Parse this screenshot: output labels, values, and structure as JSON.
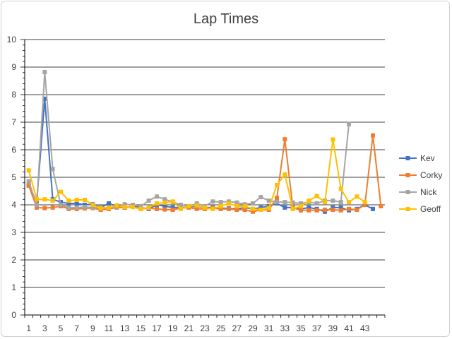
{
  "chart_data": {
    "type": "line",
    "title": "Lap Times",
    "xlabel": "",
    "ylabel": "",
    "ylim": [
      0,
      10
    ],
    "y_ticks": [
      "0",
      "1",
      "2",
      "3",
      "4",
      "5",
      "6",
      "7",
      "8",
      "9",
      "10"
    ],
    "x_tick_labels": [
      "1",
      "3",
      "5",
      "7",
      "9",
      "11",
      "13",
      "15",
      "17",
      "19",
      "21",
      "23",
      "25",
      "27",
      "29",
      "31",
      "33",
      "35",
      "37",
      "39",
      "41",
      "43"
    ],
    "x_range": [
      1,
      45
    ],
    "grid": "horizontal",
    "legend_position": "right",
    "series": [
      {
        "name": "Kev",
        "color": "#4472C4",
        "x": [
          1,
          2,
          3,
          4,
          5,
          6,
          7,
          8,
          9,
          10,
          11,
          12,
          13,
          14,
          15,
          16,
          17,
          18,
          19,
          20,
          21,
          22,
          23,
          24,
          25,
          26,
          27,
          28,
          29,
          30,
          31,
          32,
          33,
          34,
          35,
          36,
          37,
          38,
          39,
          40,
          41,
          42,
          43,
          44
        ],
        "values": [
          4.7,
          4.1,
          7.85,
          4.2,
          4.1,
          4.05,
          4.05,
          4.0,
          4.02,
          3.9,
          4.05,
          3.95,
          3.9,
          3.95,
          3.9,
          3.85,
          4.0,
          3.95,
          3.9,
          3.9,
          3.92,
          3.95,
          3.9,
          3.9,
          3.88,
          3.87,
          3.85,
          3.9,
          3.85,
          3.9,
          3.95,
          4.05,
          3.9,
          3.9,
          3.85,
          3.9,
          3.85,
          3.75,
          3.9,
          3.9,
          3.8,
          3.85,
          4.0,
          3.85
        ]
      },
      {
        "name": "Corky",
        "color": "#ED7D31",
        "x": [
          1,
          2,
          3,
          4,
          5,
          6,
          7,
          8,
          9,
          10,
          11,
          12,
          13,
          14,
          15,
          16,
          17,
          18,
          19,
          20,
          21,
          22,
          23,
          24,
          25,
          26,
          27,
          28,
          29,
          30,
          31,
          32,
          33,
          34,
          35,
          36,
          37,
          38,
          39,
          40,
          41,
          42,
          43,
          44,
          45
        ],
        "values": [
          4.7,
          3.9,
          3.88,
          3.9,
          3.95,
          3.85,
          3.85,
          3.87,
          3.88,
          3.82,
          3.85,
          3.9,
          3.9,
          3.92,
          3.85,
          3.88,
          3.85,
          3.83,
          3.82,
          3.88,
          3.9,
          3.85,
          3.85,
          3.88,
          3.85,
          3.85,
          3.82,
          3.82,
          3.75,
          3.82,
          3.82,
          4.25,
          6.38,
          3.9,
          3.8,
          3.8,
          3.8,
          3.82,
          3.82,
          3.8,
          3.85,
          3.82,
          4.0,
          6.52,
          3.95
        ]
      },
      {
        "name": "Nick",
        "color": "#A5A5A5",
        "x": [
          1,
          2,
          3,
          4,
          5,
          6,
          7,
          8,
          9,
          10,
          11,
          12,
          13,
          14,
          15,
          16,
          17,
          18,
          19,
          20,
          21,
          22,
          23,
          24,
          25,
          26,
          27,
          28,
          29,
          30,
          31,
          32,
          33,
          34,
          35,
          36,
          37,
          38,
          39,
          40,
          41
        ],
        "values": [
          4.85,
          4.0,
          8.82,
          5.3,
          4.0,
          3.9,
          3.9,
          3.92,
          3.9,
          3.88,
          3.9,
          3.92,
          4.02,
          4.0,
          3.95,
          4.15,
          4.3,
          4.2,
          4.1,
          4.0,
          3.95,
          4.05,
          3.95,
          4.12,
          4.1,
          4.12,
          4.08,
          4.02,
          4.05,
          4.28,
          4.15,
          4.1,
          4.1,
          4.08,
          4.05,
          4.1,
          4.05,
          4.15,
          4.15,
          4.1,
          6.93
        ]
      },
      {
        "name": "Geoff",
        "color": "#FFC000",
        "x": [
          1,
          2,
          3,
          4,
          5,
          6,
          7,
          8,
          9,
          10,
          11,
          12,
          13,
          14,
          15,
          16,
          17,
          18,
          19,
          20,
          21,
          22,
          23,
          24,
          25,
          26,
          27,
          28,
          29,
          30,
          31,
          32,
          33,
          34,
          35,
          36,
          37,
          38,
          39,
          40,
          41,
          42,
          43
        ],
        "values": [
          5.25,
          4.2,
          4.2,
          4.15,
          4.47,
          4.15,
          4.18,
          4.18,
          4.0,
          3.88,
          3.9,
          3.98,
          3.92,
          3.92,
          3.85,
          3.9,
          4.05,
          4.08,
          4.12,
          3.85,
          3.95,
          3.98,
          3.9,
          3.85,
          3.95,
          4.05,
          3.95,
          3.95,
          3.85,
          3.82,
          3.88,
          4.72,
          5.1,
          3.85,
          3.95,
          4.15,
          4.32,
          4.1,
          6.37,
          4.58,
          4.1,
          4.3,
          4.1
        ]
      }
    ]
  }
}
